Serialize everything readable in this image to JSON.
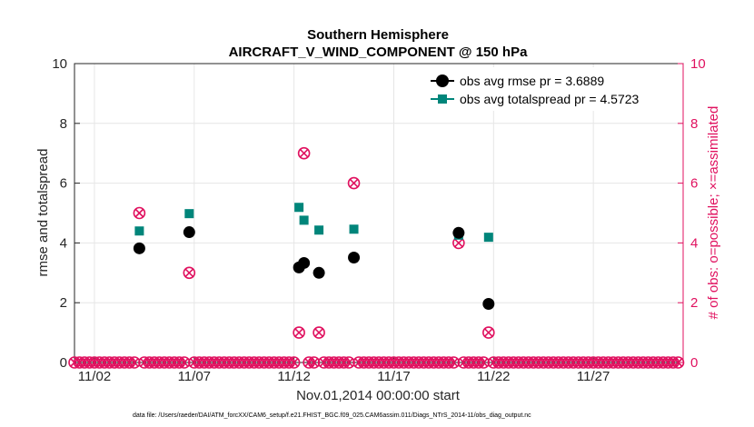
{
  "chart_data": {
    "type": "scatter",
    "title": "Southern Hemisphere",
    "subtitle": "AIRCRAFT_V_WIND_COMPONENT @ 150 hPa",
    "xlabel": "Nov.01,2014 00:00:00 start",
    "ylabel": "rmse and totalspread",
    "ylabel_right": "# of obs: o=possible; ×=assimilated",
    "xlim": [
      1.0,
      31.5
    ],
    "ylim": [
      0,
      10
    ],
    "ylim_right": [
      0,
      10
    ],
    "yticks": [
      0,
      2,
      4,
      6,
      8,
      10
    ],
    "yticks_right": [
      0,
      2,
      4,
      6,
      8,
      10
    ],
    "xticks": [
      {
        "x": 2,
        "label": "11/02"
      },
      {
        "x": 7,
        "label": "11/07"
      },
      {
        "x": 12,
        "label": "11/12"
      },
      {
        "x": 17,
        "label": "11/17"
      },
      {
        "x": 22,
        "label": "11/22"
      },
      {
        "x": 27,
        "label": "11/27"
      }
    ],
    "series": [
      {
        "name": "obs avg rmse pr = 3.6889",
        "color": "#000000",
        "marker": "circle",
        "points": [
          {
            "x": 4.25,
            "y": 3.82
          },
          {
            "x": 6.75,
            "y": 4.36
          },
          {
            "x": 12.25,
            "y": 3.18
          },
          {
            "x": 12.5,
            "y": 3.33
          },
          {
            "x": 13.25,
            "y": 3.0
          },
          {
            "x": 15.0,
            "y": 3.51
          },
          {
            "x": 20.25,
            "y": 4.34
          },
          {
            "x": 21.75,
            "y": 1.96
          }
        ]
      },
      {
        "name": "obs avg totalspread pr = 4.5723",
        "color": "#00857a",
        "marker": "square",
        "points": [
          {
            "x": 4.25,
            "y": 4.4
          },
          {
            "x": 6.75,
            "y": 4.98
          },
          {
            "x": 12.25,
            "y": 5.19
          },
          {
            "x": 12.5,
            "y": 4.76
          },
          {
            "x": 13.25,
            "y": 4.43
          },
          {
            "x": 15.0,
            "y": 4.46
          },
          {
            "x": 20.25,
            "y": 4.26
          },
          {
            "x": 21.75,
            "y": 4.19
          }
        ]
      },
      {
        "name": "# obs possible / assimilated",
        "color": "#e0115f",
        "marker": "circle-x",
        "axis": "right",
        "x_start": 1.0,
        "x_step": 0.25,
        "default_count": 0,
        "nonzero": [
          {
            "x": 4.25,
            "y": 5
          },
          {
            "x": 6.75,
            "y": 3
          },
          {
            "x": 12.25,
            "y": 1
          },
          {
            "x": 12.5,
            "y": 7
          },
          {
            "x": 13.25,
            "y": 1
          },
          {
            "x": 15.0,
            "y": 6
          },
          {
            "x": 20.25,
            "y": 4
          },
          {
            "x": 21.75,
            "y": 1
          }
        ],
        "last_x": 31.25
      }
    ],
    "legend_position": "top-right",
    "grid": true
  },
  "footnote": "data file: /Users/raeder/DAI/ATM_forcXX/CAM6_setup/f.e21.FHIST_BGC.f09_025.CAM6assim.011/Diags_NTrS_2014-11/obs_diag_output.nc"
}
